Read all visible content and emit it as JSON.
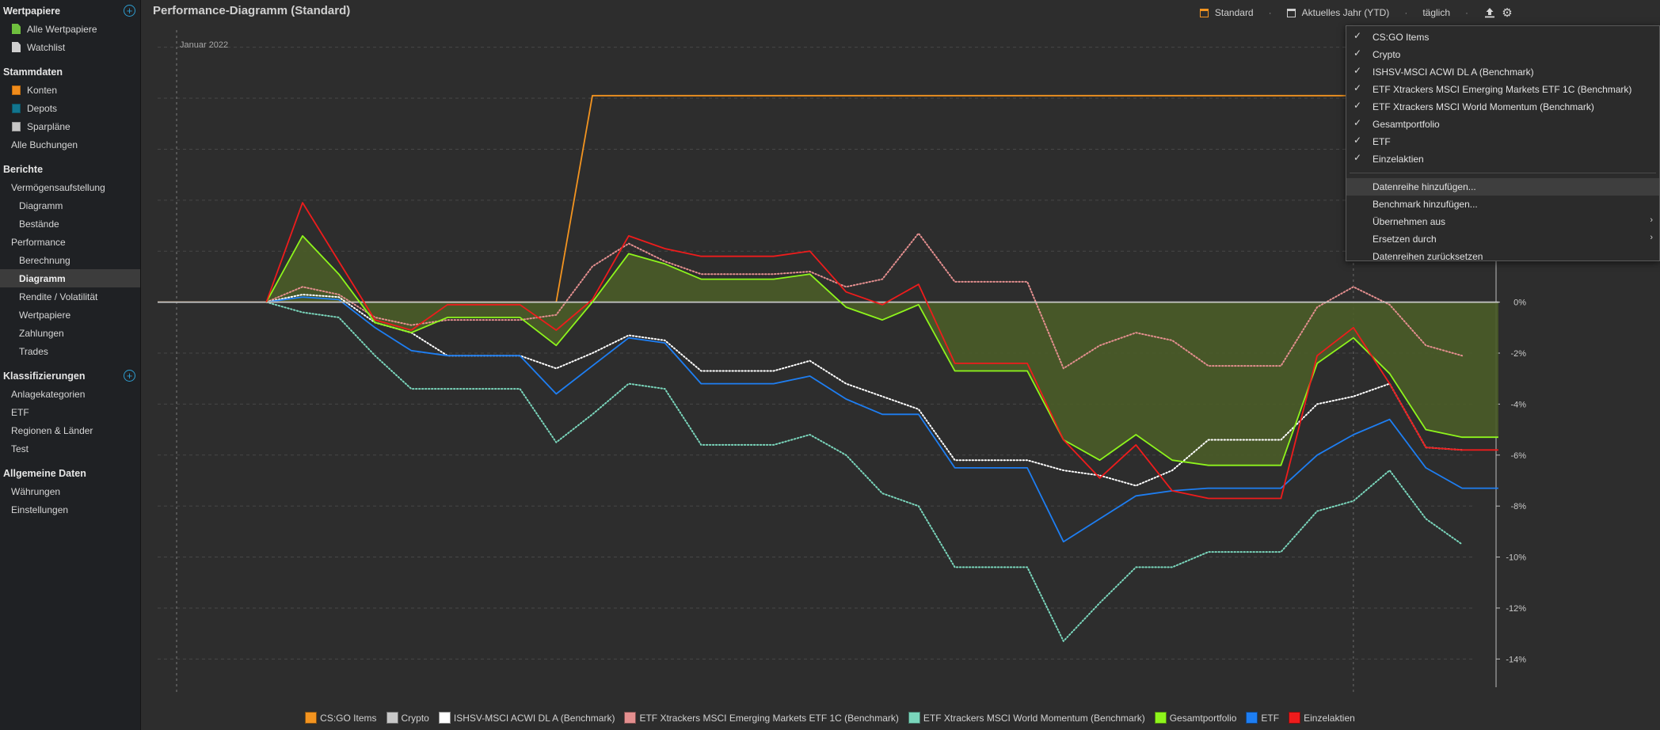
{
  "sidebar": {
    "sections": [
      {
        "title": "Wertpapiere",
        "add": true,
        "items": [
          {
            "label": "Alle Wertpapiere",
            "level": "l1-icon",
            "icon": "ico-green",
            "icon_name": "document-icon"
          },
          {
            "label": "Watchlist",
            "level": "l1-icon",
            "icon": "ico-white",
            "icon_name": "document-icon"
          }
        ]
      },
      {
        "title": "Stammdaten",
        "add": false,
        "items": [
          {
            "label": "Konten",
            "level": "l1-icon",
            "icon": "ico-orange",
            "icon_name": "account-icon"
          },
          {
            "label": "Depots",
            "level": "l1-icon",
            "icon": "ico-teal",
            "icon_name": "portfolio-icon"
          },
          {
            "label": "Sparpläne",
            "level": "l1-icon",
            "icon": "ico-grey",
            "icon_name": "savings-plan-icon"
          },
          {
            "label": "Alle Buchungen",
            "level": "l1"
          }
        ]
      },
      {
        "title": "Berichte",
        "add": false,
        "items": [
          {
            "label": "Vermögensaufstellung",
            "level": "l1"
          },
          {
            "label": "Diagramm",
            "level": "l2"
          },
          {
            "label": "Bestände",
            "level": "l2"
          },
          {
            "label": "Performance",
            "level": "l1"
          },
          {
            "label": "Berechnung",
            "level": "l2"
          },
          {
            "label": "Diagramm",
            "level": "l2",
            "selected": true
          },
          {
            "label": "Rendite / Volatilität",
            "level": "l2"
          },
          {
            "label": "Wertpapiere",
            "level": "l2"
          },
          {
            "label": "Zahlungen",
            "level": "l2"
          },
          {
            "label": "Trades",
            "level": "l2"
          }
        ]
      },
      {
        "title": "Klassifizierungen",
        "add": true,
        "items": [
          {
            "label": "Anlagekategorien",
            "level": "l1"
          },
          {
            "label": "ETF",
            "level": "l1"
          },
          {
            "label": "Regionen & Länder",
            "level": "l1"
          },
          {
            "label": "Test",
            "level": "l1"
          }
        ]
      },
      {
        "title": "Allgemeine Daten",
        "add": false,
        "items": [
          {
            "label": "Währungen",
            "level": "l1"
          },
          {
            "label": "Einstellungen",
            "level": "l1"
          }
        ]
      }
    ]
  },
  "header": {
    "title": "Performance-Diagramm (Standard)"
  },
  "toolbar": {
    "config_label": "Standard",
    "period_label": "Aktuelles Jahr (YTD)",
    "interval_label": "täglich",
    "export_icon": "export-icon",
    "settings_icon": "gear-icon"
  },
  "context_menu": {
    "checked_items": [
      "CS:GO Items",
      "Crypto",
      "ISHSV-MSCI ACWI DL A (Benchmark)",
      "ETF Xtrackers MSCI Emerging Markets ETF 1C (Benchmark)",
      "ETF Xtrackers MSCI World Momentum (Benchmark)",
      "Gesamtportfolio",
      "ETF",
      "Einzelaktien"
    ],
    "actions": [
      {
        "label": "Datenreihe hinzufügen...",
        "highlight": true,
        "submenu": false
      },
      {
        "label": "Benchmark hinzufügen...",
        "highlight": false,
        "submenu": false
      },
      {
        "label": "Übernehmen aus",
        "highlight": false,
        "submenu": true
      },
      {
        "label": "Ersetzen durch",
        "highlight": false,
        "submenu": true
      },
      {
        "label": "Datenreihen zurücksetzen",
        "highlight": false,
        "submenu": false
      }
    ]
  },
  "chart_data": {
    "type": "line",
    "period_marker": "Januar 2022",
    "y_ticks": [
      "0%",
      "-2%",
      "-4%",
      "-6%",
      "-8%",
      "-10%",
      "-12%",
      "-14%"
    ],
    "ylim": [
      -14.3,
      10.3
    ],
    "x": [
      0,
      1,
      2,
      3,
      4,
      5,
      6,
      7,
      8,
      9,
      10,
      11,
      12,
      13,
      14,
      15,
      16,
      17,
      18,
      19,
      20,
      21,
      22,
      23,
      24,
      25,
      26,
      27,
      28,
      29,
      30,
      31,
      32,
      33,
      34,
      35,
      36
    ],
    "xlim": [
      -1,
      35.5
    ],
    "series": [
      {
        "name": "CS:GO Items",
        "color": "#f39420",
        "style": "solid",
        "values": [
          0,
          0,
          0,
          0,
          0,
          0,
          0,
          0,
          0,
          0,
          0,
          8.1,
          8.1,
          8.1,
          8.1,
          8.1,
          8.1,
          8.1,
          8.1,
          8.1,
          8.1,
          8.1,
          8.1,
          8.1,
          8.1,
          8.1,
          8.1,
          8.1,
          8.1,
          8.1,
          8.1,
          8.1,
          8.1,
          8.1,
          8.1,
          8.1,
          8.1
        ]
      },
      {
        "name": "Crypto",
        "color": "#c8c8c8",
        "style": "solid",
        "values": [
          0,
          0,
          0,
          0,
          0,
          0,
          0,
          0,
          0,
          0,
          0,
          0,
          0,
          0,
          0,
          0,
          0,
          0,
          0,
          0,
          0,
          0,
          0,
          0,
          0,
          0,
          0,
          0,
          0,
          0,
          0,
          0,
          0,
          0,
          0,
          0,
          0
        ]
      },
      {
        "name": "ISHSV-MSCI ACWI DL A (Benchmark)",
        "color": "#ffffff",
        "style": "dotted",
        "values": [
          null,
          null,
          0,
          0.3,
          0.2,
          -0.8,
          -1.2,
          -2.1,
          -2.1,
          -2.1,
          -2.6,
          -2.0,
          -1.3,
          -1.5,
          -2.7,
          -2.7,
          -2.7,
          -2.3,
          -3.2,
          -3.7,
          -4.2,
          -6.2,
          -6.2,
          -6.2,
          -6.6,
          -6.8,
          -7.2,
          -6.6,
          -5.4,
          -5.4,
          -5.4,
          -4.0,
          -3.7,
          -3.2,
          -5.7,
          -5.8,
          null
        ]
      },
      {
        "name": "ETF Xtrackers MSCI Emerging Markets ETF 1C (Benchmark)",
        "color": "#e48f8f",
        "style": "dotted",
        "values": [
          null,
          null,
          0,
          0.6,
          0.3,
          -0.6,
          -0.9,
          -0.7,
          -0.7,
          -0.7,
          -0.5,
          1.4,
          2.3,
          1.6,
          1.1,
          1.1,
          1.1,
          1.2,
          0.6,
          0.9,
          2.7,
          0.8,
          0.8,
          0.8,
          -2.6,
          -1.7,
          -1.2,
          -1.5,
          -2.5,
          -2.5,
          -2.5,
          -0.2,
          0.6,
          -0.1,
          -1.7,
          -2.1,
          null
        ]
      },
      {
        "name": "ETF Xtrackers MSCI World Momentum (Benchmark)",
        "color": "#7ad6bc",
        "style": "dotted",
        "values": [
          null,
          null,
          0,
          -0.4,
          -0.6,
          -2.1,
          -3.4,
          -3.4,
          -3.4,
          -3.4,
          -5.5,
          -4.4,
          -3.2,
          -3.4,
          -5.6,
          -5.6,
          -5.6,
          -5.2,
          -6.0,
          -7.5,
          -8.0,
          -10.4,
          -10.4,
          -10.4,
          -13.3,
          -11.8,
          -10.4,
          -10.4,
          -9.8,
          -9.8,
          -9.8,
          -8.2,
          -7.8,
          -6.6,
          -8.5,
          -9.5,
          null
        ]
      },
      {
        "name": "Gesamtportfolio",
        "color": "#8ef51c",
        "style": "solid",
        "fill": "#4a5c28",
        "values": [
          null,
          null,
          0,
          2.6,
          1.1,
          -0.8,
          -1.2,
          -0.6,
          -0.6,
          -0.6,
          -1.7,
          0,
          1.9,
          1.5,
          0.9,
          0.9,
          0.9,
          1.1,
          -0.2,
          -0.7,
          -0.1,
          -2.7,
          -2.7,
          -2.7,
          -5.4,
          -6.2,
          -5.2,
          -6.2,
          -6.4,
          -6.4,
          -6.4,
          -2.4,
          -1.4,
          -2.8,
          -5.0,
          -5.3,
          -5.3
        ]
      },
      {
        "name": "ETF",
        "color": "#1e7ef2",
        "style": "solid",
        "values": [
          null,
          null,
          0,
          0.2,
          0.1,
          -1.0,
          -1.9,
          -2.1,
          -2.1,
          -2.1,
          -3.6,
          -2.5,
          -1.4,
          -1.6,
          -3.2,
          -3.2,
          -3.2,
          -2.9,
          -3.8,
          -4.4,
          -4.4,
          -6.5,
          -6.5,
          -6.5,
          -9.4,
          -8.5,
          -7.6,
          -7.4,
          -7.3,
          -7.3,
          -7.3,
          -6.0,
          -5.2,
          -4.6,
          -6.5,
          -7.3,
          -7.3
        ]
      },
      {
        "name": "Einzelaktien",
        "color": "#ee1c1c",
        "style": "solid",
        "values": [
          null,
          null,
          0,
          3.9,
          1.6,
          -0.7,
          -1.1,
          -0.1,
          -0.1,
          -0.1,
          -1.1,
          0.1,
          2.6,
          2.1,
          1.8,
          1.8,
          1.8,
          2.0,
          0.4,
          -0.1,
          0.7,
          -2.4,
          -2.4,
          -2.4,
          -5.4,
          -6.9,
          -5.6,
          -7.4,
          -7.7,
          -7.7,
          -7.7,
          -2.1,
          -1.0,
          -3.2,
          -5.7,
          -5.8,
          -5.8
        ]
      }
    ]
  }
}
